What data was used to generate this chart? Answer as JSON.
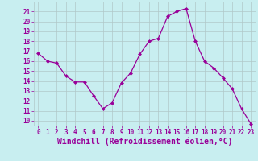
{
  "x": [
    0,
    1,
    2,
    3,
    4,
    5,
    6,
    7,
    8,
    9,
    10,
    11,
    12,
    13,
    14,
    15,
    16,
    17,
    18,
    19,
    20,
    21,
    22,
    23
  ],
  "y": [
    16.8,
    16.0,
    15.8,
    14.5,
    13.9,
    13.9,
    12.5,
    11.2,
    11.8,
    13.8,
    14.8,
    16.7,
    18.0,
    18.3,
    20.5,
    21.0,
    21.3,
    18.0,
    16.0,
    15.3,
    14.3,
    13.2,
    11.2,
    9.7
  ],
  "line_color": "#990099",
  "marker": "D",
  "marker_size": 2.0,
  "bg_color": "#c8eef0",
  "grid_color": "#b0c8c8",
  "xlabel": "Windchill (Refroidissement éolien,°C)",
  "xlabel_color": "#990099",
  "ylabel_ticks": [
    10,
    11,
    12,
    13,
    14,
    15,
    16,
    17,
    18,
    19,
    20,
    21
  ],
  "ylim": [
    9.5,
    22.0
  ],
  "xlim": [
    -0.5,
    23.5
  ],
  "font_color": "#990099",
  "tick_fontsize": 5.5,
  "xlabel_fontsize": 7.0
}
